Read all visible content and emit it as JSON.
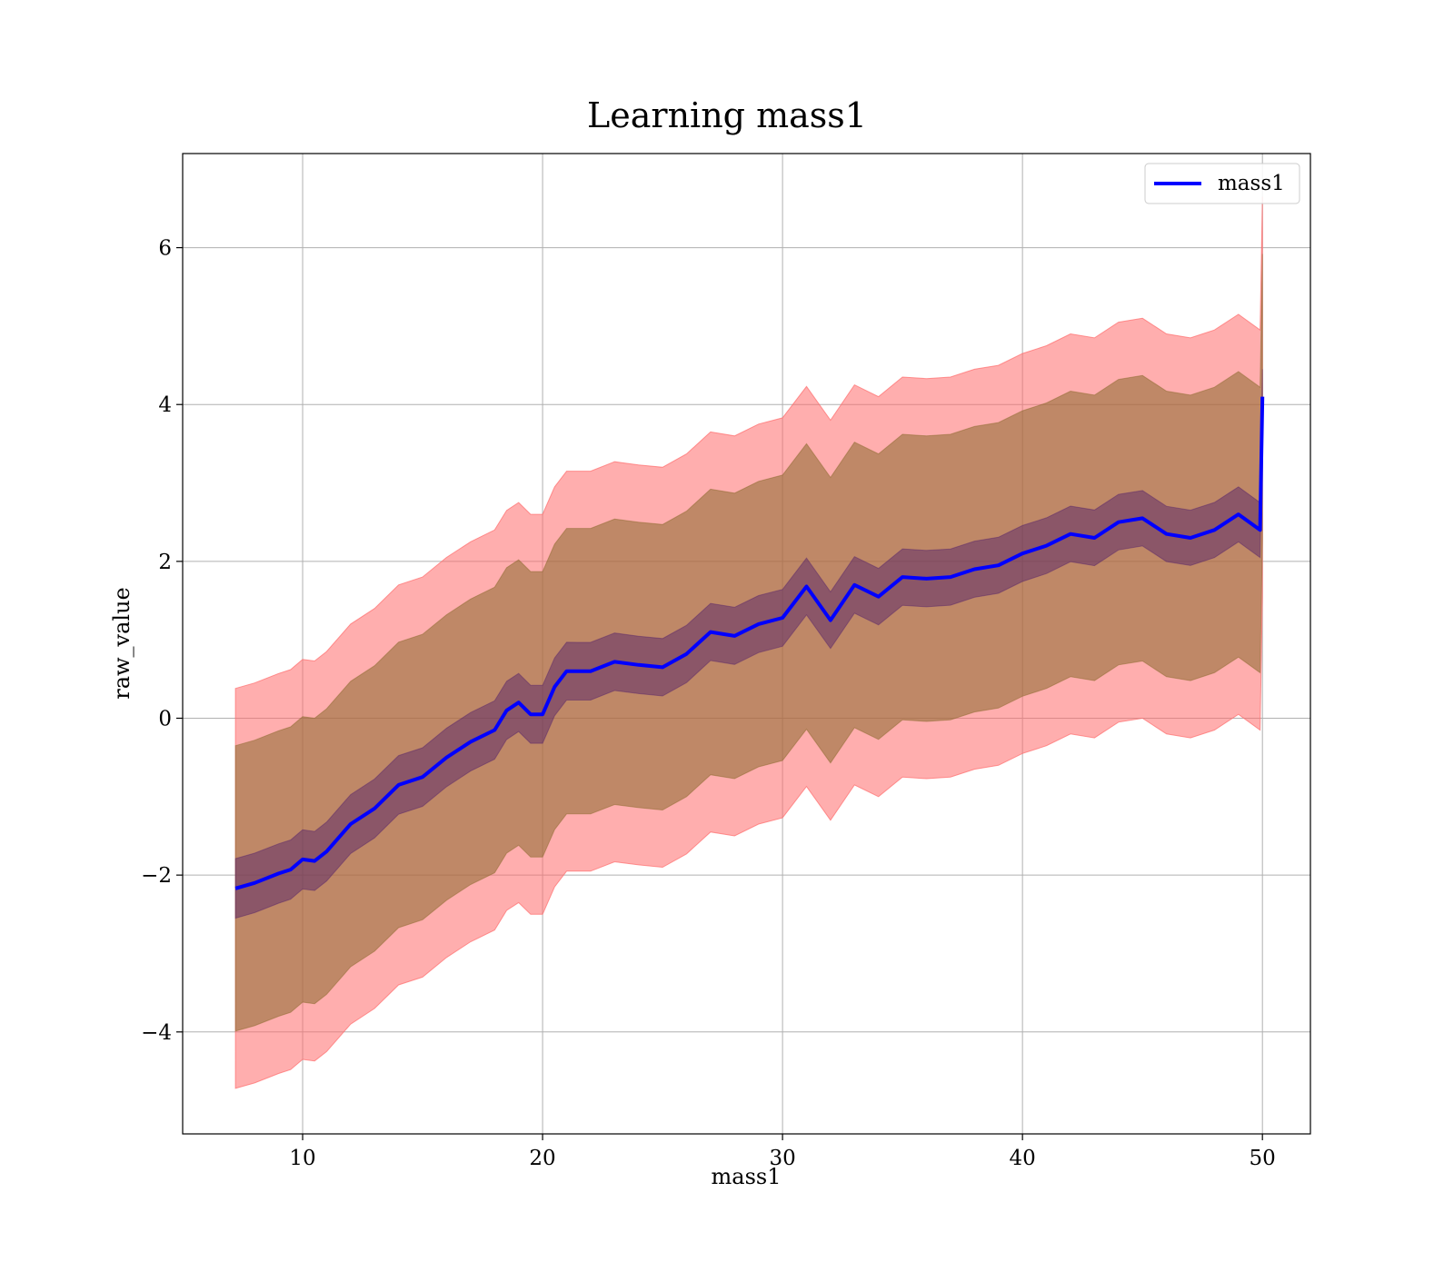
{
  "chart_data": {
    "type": "line",
    "title": "Learning mass1",
    "xlabel": "mass1",
    "ylabel": "raw_value",
    "xlim": [
      5,
      52
    ],
    "ylim": [
      -5.3,
      7.2
    ],
    "xticks": [
      10,
      20,
      30,
      40,
      50
    ],
    "xtick_labels": [
      "10",
      "20",
      "30",
      "40",
      "50"
    ],
    "yticks": [
      -4,
      -2,
      0,
      2,
      4,
      6
    ],
    "ytick_labels": [
      "−4",
      "−2",
      "0",
      "2",
      "4",
      "6"
    ],
    "grid": true,
    "legend_position": "top-right",
    "colors": {
      "line": "#0000ff",
      "band_outer": "#ff6b6b",
      "band_middle": "#8b6a2e",
      "band_inner": "#4b1a6b"
    },
    "series": [
      {
        "name": "mass1",
        "x": [
          7.2,
          8,
          9,
          9.5,
          10,
          10.5,
          11,
          12,
          13,
          14,
          15,
          16,
          17,
          18,
          18.5,
          19,
          19.5,
          20,
          20.5,
          21,
          22,
          23,
          24,
          25,
          26,
          27,
          28,
          29,
          30,
          31,
          32,
          33,
          34,
          35,
          36,
          37,
          38,
          39,
          40,
          41,
          42,
          43,
          44,
          45,
          46,
          47,
          48,
          49,
          49.9,
          50.0
        ],
        "y": [
          -2.17,
          -2.1,
          -1.98,
          -1.93,
          -1.8,
          -1.82,
          -1.7,
          -1.35,
          -1.15,
          -0.85,
          -0.75,
          -0.5,
          -0.3,
          -0.15,
          0.1,
          0.2,
          0.05,
          0.05,
          0.4,
          0.6,
          0.6,
          0.72,
          0.68,
          0.65,
          0.82,
          1.1,
          1.05,
          1.2,
          1.28,
          1.68,
          1.25,
          1.7,
          1.55,
          1.8,
          1.78,
          1.8,
          1.9,
          1.95,
          2.1,
          2.2,
          2.35,
          2.3,
          2.5,
          2.55,
          2.35,
          2.3,
          2.4,
          2.6,
          2.4,
          4.1
        ],
        "band_inner": {
          "half_width_start": 0.38,
          "half_width_end": 0.35
        },
        "band_middle": {
          "half_width_start": 1.82,
          "half_width_end": 1.82
        },
        "band_outer": {
          "half_width_start": 2.55,
          "half_width_end": 2.55
        }
      }
    ]
  }
}
